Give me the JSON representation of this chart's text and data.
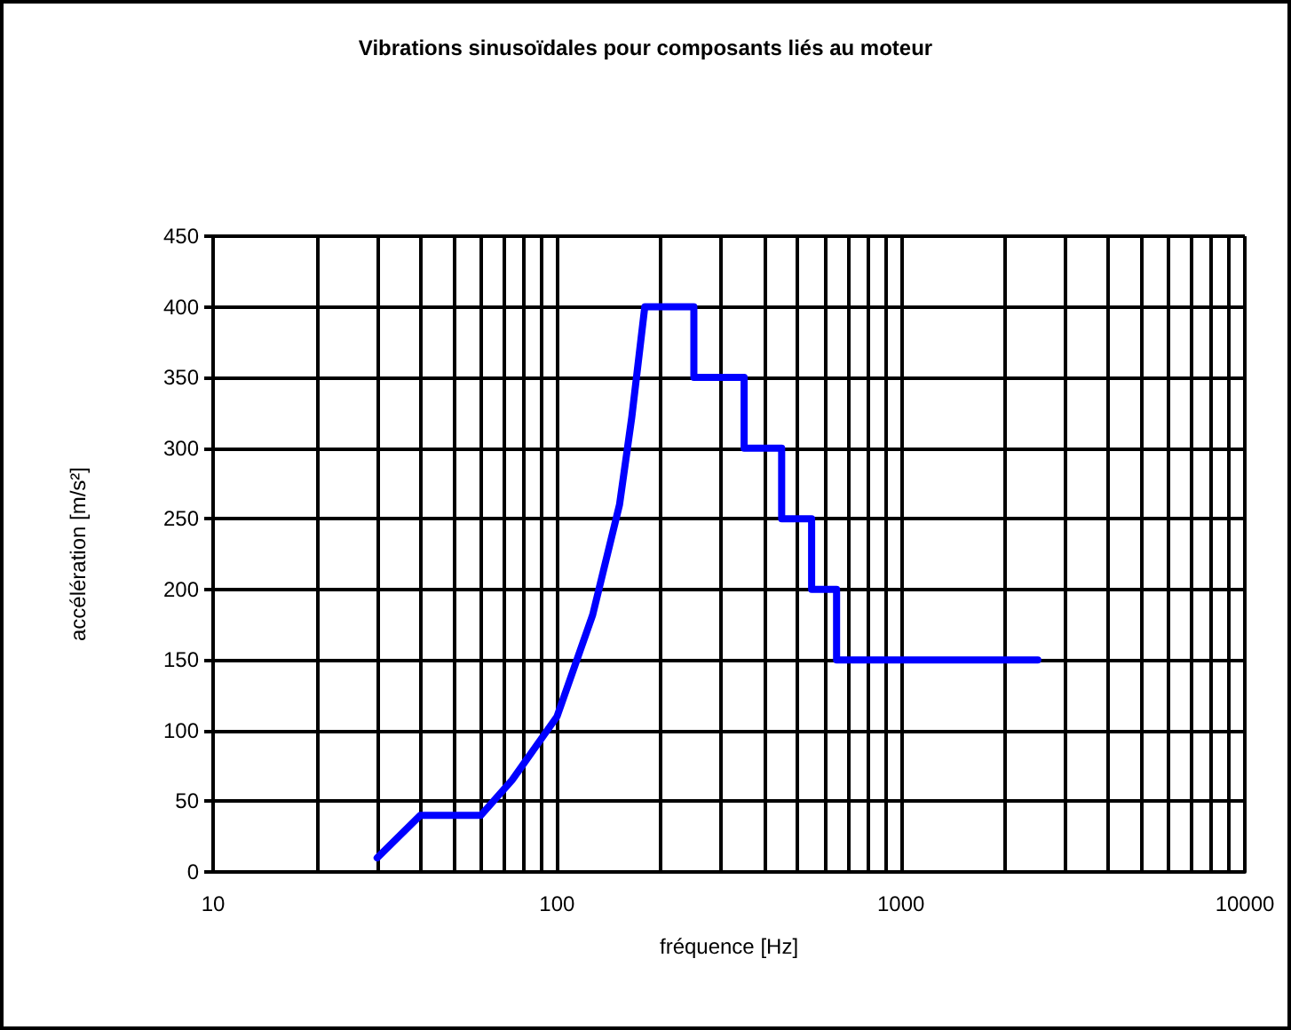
{
  "chart_data": {
    "type": "line",
    "title": "Vibrations sinusoïdales pour composants liés au moteur",
    "xlabel": "fréquence [Hz]",
    "ylabel": "accélération [m/s²]",
    "log": "x",
    "grid": true,
    "marker": "none",
    "line_style": "solid",
    "xlim": [
      10,
      10000
    ],
    "xticks": [
      10,
      {
        "value": 20,
        "label": null
      },
      {
        "value": 30,
        "label": null
      },
      {
        "value": 40,
        "label": null
      },
      {
        "value": 50,
        "label": null
      },
      {
        "value": 60,
        "label": null
      },
      {
        "value": 70,
        "label": null
      },
      {
        "value": 80,
        "label": null
      },
      {
        "value": 90,
        "label": null
      },
      100,
      {
        "value": 200,
        "label": null
      },
      {
        "value": 300,
        "label": null
      },
      {
        "value": 400,
        "label": null
      },
      {
        "value": 500,
        "label": null
      },
      {
        "value": 600,
        "label": null
      },
      {
        "value": 700,
        "label": null
      },
      {
        "value": 800,
        "label": null
      },
      {
        "value": 900,
        "label": null
      },
      1000,
      {
        "value": 2000,
        "label": null
      },
      {
        "value": 3000,
        "label": null
      },
      {
        "value": 4000,
        "label": null
      },
      {
        "value": 5000,
        "label": null
      },
      {
        "value": 6000,
        "label": null
      },
      {
        "value": 7000,
        "label": null
      },
      {
        "value": 8000,
        "label": null
      },
      {
        "value": 9000,
        "label": null
      },
      10000
    ],
    "ylim": [
      0,
      450
    ],
    "yticks": [
      0,
      50,
      100,
      150,
      200,
      250,
      300,
      350,
      400,
      450
    ],
    "series": [
      {
        "color": "#0000ff",
        "x": [
          30,
          40,
          60,
          74,
          100,
          127,
          152,
          165,
          180,
          250,
          250,
          350,
          350,
          450,
          450,
          550,
          550,
          650,
          650,
          2500
        ],
        "values": [
          10,
          40,
          40,
          65,
          110,
          182,
          260,
          322,
          400,
          400,
          350,
          350,
          300,
          300,
          250,
          250,
          200,
          200,
          150,
          150
        ]
      }
    ]
  }
}
